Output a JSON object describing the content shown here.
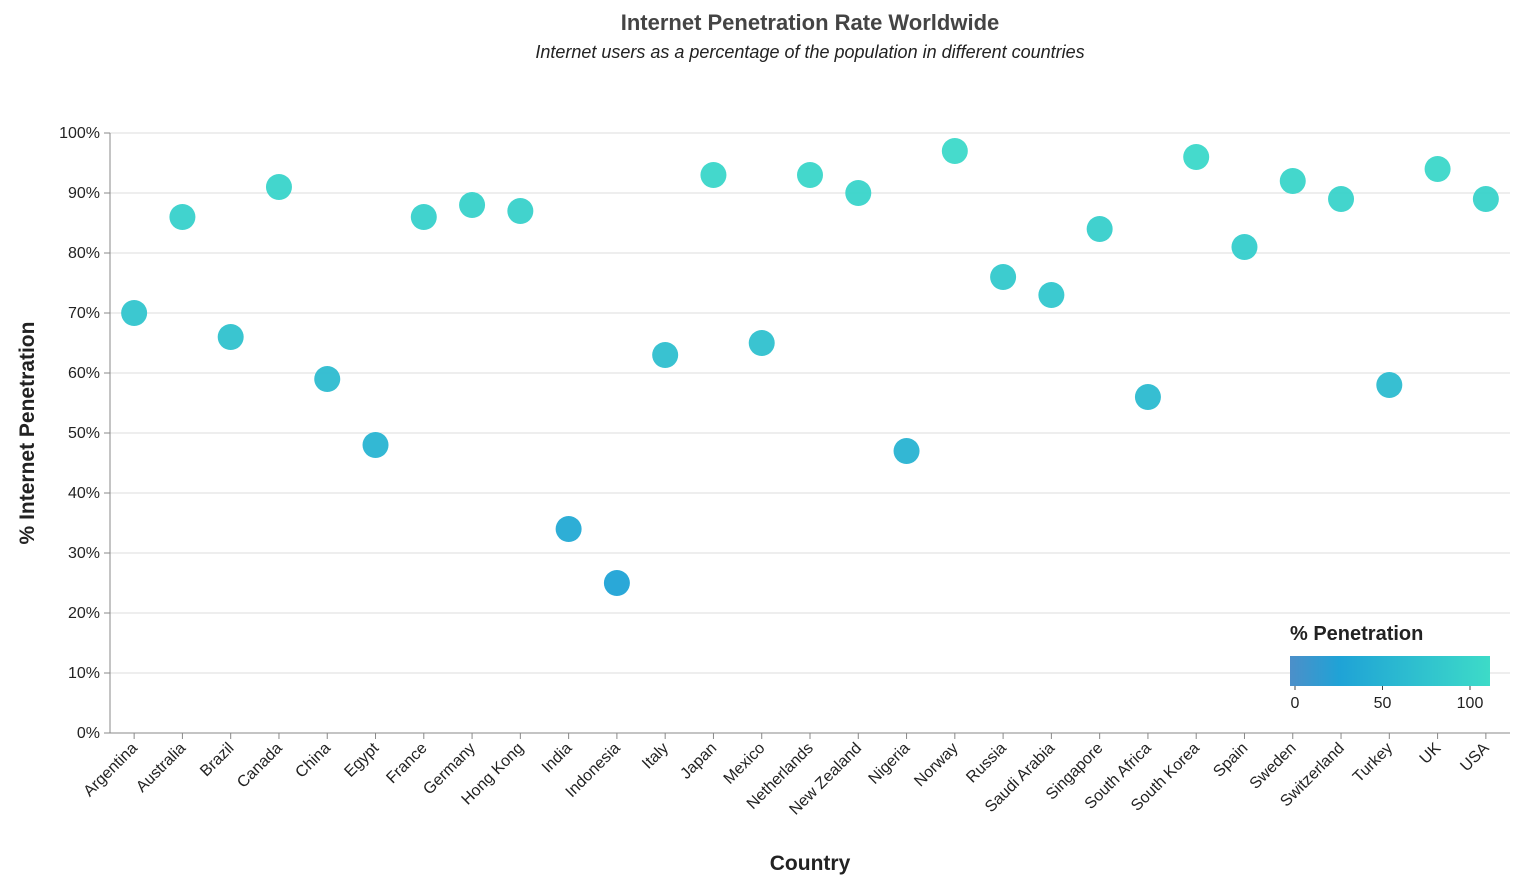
{
  "chart_data": {
    "type": "scatter",
    "title": "Internet Penetration Rate Worldwide",
    "subtitle": "Internet users as a percentage of the population in different countries",
    "xlabel": "Country",
    "ylabel": "% Internet Penetration",
    "ylim": [
      0,
      100
    ],
    "yticks": [
      "0%",
      "10%",
      "20%",
      "30%",
      "40%",
      "50%",
      "60%",
      "70%",
      "80%",
      "90%",
      "100%"
    ],
    "grid": true,
    "legend": {
      "title": "% Penetration",
      "placement": "bottom-right",
      "ticks": [
        "0",
        "50",
        "100"
      ],
      "range": [
        0,
        100
      ]
    },
    "colors": {
      "low": "#4c8fc9",
      "mid": "#1fa3d6",
      "high": "#3ddbc8"
    },
    "points": [
      {
        "x": "Argentina",
        "y": 70
      },
      {
        "x": "Australia",
        "y": 86
      },
      {
        "x": "Brazil",
        "y": 66
      },
      {
        "x": "Canada",
        "y": 91
      },
      {
        "x": "China",
        "y": 59
      },
      {
        "x": "Egypt",
        "y": 48
      },
      {
        "x": "France",
        "y": 86
      },
      {
        "x": "Germany",
        "y": 88
      },
      {
        "x": "Hong Kong",
        "y": 87
      },
      {
        "x": "India",
        "y": 34
      },
      {
        "x": "Indonesia",
        "y": 25
      },
      {
        "x": "Italy",
        "y": 63
      },
      {
        "x": "Japan",
        "y": 93
      },
      {
        "x": "Mexico",
        "y": 65
      },
      {
        "x": "Netherlands",
        "y": 93
      },
      {
        "x": "New Zealand",
        "y": 90
      },
      {
        "x": "Nigeria",
        "y": 47
      },
      {
        "x": "Norway",
        "y": 97
      },
      {
        "x": "Russia",
        "y": 76
      },
      {
        "x": "Saudi Arabia",
        "y": 73
      },
      {
        "x": "Singapore",
        "y": 84
      },
      {
        "x": "South Africa",
        "y": 56
      },
      {
        "x": "South Korea",
        "y": 96
      },
      {
        "x": "Spain",
        "y": 81
      },
      {
        "x": "Sweden",
        "y": 92
      },
      {
        "x": "Switzerland",
        "y": 89
      },
      {
        "x": "Turkey",
        "y": 58
      },
      {
        "x": "UK",
        "y": 94
      },
      {
        "x": "USA",
        "y": 89
      }
    ]
  }
}
